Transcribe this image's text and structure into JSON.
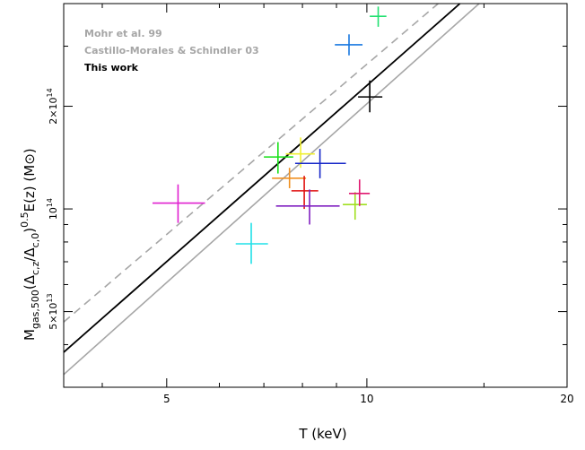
{
  "chart_data": {
    "type": "scatter",
    "title": "",
    "xlabel": "T (keV)",
    "ylabel_parts": {
      "M": "M",
      "M_sub": "gas,500",
      "paren_open": "(Δ",
      "sub1": "c,z",
      "slash": "/Δ",
      "sub2": "c,0",
      "paren_close": ")",
      "exp": "0.5",
      "tail": "E(z)  (M",
      "sun": "⊙",
      "end": ")"
    },
    "x_scale": "log",
    "y_scale": "log",
    "xlim": [
      3.5,
      20
    ],
    "ylim": [
      30000000000000.0,
      400000000000000.0
    ],
    "x_tick_labels": [
      {
        "value": 5,
        "label": "5"
      },
      {
        "value": 10,
        "label": "10"
      },
      {
        "value": 20,
        "label": "20"
      }
    ],
    "x_minor_ticks": [
      4,
      6,
      7,
      8,
      9,
      15
    ],
    "y_tick_labels": [
      {
        "value": 50000000000000.0,
        "base": "5×10",
        "exp": "13"
      },
      {
        "value": 100000000000000.0,
        "base": "10",
        "exp": "14"
      },
      {
        "value": 200000000000000.0,
        "base": "2×10",
        "exp": "14"
      }
    ],
    "y_minor_ticks": [
      40000000000000.0,
      60000000000000.0,
      70000000000000.0,
      80000000000000.0,
      90000000000000.0,
      300000000000000.0,
      400000000000000.0
    ],
    "legend": {
      "placement": "top-left",
      "entries": [
        {
          "label": "Mohr et al. 99",
          "color": "#a6a6a6"
        },
        {
          "label": "Castillo-Morales & Schindler 03",
          "color": "#a6a6a6"
        },
        {
          "label": "This work",
          "color": "#000000"
        }
      ]
    },
    "lines": [
      {
        "style": "dashed",
        "color": "#a6a6a6",
        "points": [
          [
            3.5,
            46600000000000.0
          ],
          [
            12.8,
            400000000000000.0
          ]
        ]
      },
      {
        "style": "solid",
        "color": "#000000",
        "points": [
          [
            3.5,
            38000000000000.0
          ],
          [
            13.8,
            400000000000000.0
          ]
        ]
      },
      {
        "style": "solid",
        "color": "#a6a6a6",
        "points": [
          [
            3.5,
            32700000000000.0
          ],
          [
            14.75,
            400000000000000.0
          ]
        ]
      }
    ],
    "points": [
      {
        "color": "#e020d0",
        "x": 5.2,
        "y": 104000000000000.0,
        "xerr": [
          4.76,
          5.71
        ],
        "yerr": [
          91000000000000.0,
          118000000000000.0
        ]
      },
      {
        "color": "#20e0e8",
        "x": 6.7,
        "y": 79000000000000.0,
        "xerr": [
          6.35,
          7.1
        ],
        "yerr": [
          69000000000000.0,
          91000000000000.0
        ]
      },
      {
        "color": "#18e018",
        "x": 7.35,
        "y": 142000000000000.0,
        "xerr": [
          7.0,
          7.75
        ],
        "yerr": [
          127000000000000.0,
          157000000000000.0
        ]
      },
      {
        "color": "#f09020",
        "x": 7.65,
        "y": 123000000000000.0,
        "xerr": [
          7.2,
          8.1
        ],
        "yerr": [
          115000000000000.0,
          132000000000000.0
        ]
      },
      {
        "color": "#f0f030",
        "x": 7.95,
        "y": 145000000000000.0,
        "xerr": [
          7.55,
          8.35
        ],
        "yerr": [
          132000000000000.0,
          162000000000000.0
        ]
      },
      {
        "color": "#e01010",
        "x": 8.05,
        "y": 113000000000000.0,
        "xerr": [
          7.7,
          8.45
        ],
        "yerr": [
          100000000000000.0,
          125000000000000.0
        ]
      },
      {
        "color": "#8020c0",
        "x": 8.2,
        "y": 102000000000000.0,
        "xerr": [
          7.3,
          9.1
        ],
        "yerr": [
          90000000000000.0,
          114000000000000.0
        ]
      },
      {
        "color": "#1828c8",
        "x": 8.5,
        "y": 136000000000000.0,
        "xerr": [
          7.8,
          9.3
        ],
        "yerr": [
          123000000000000.0,
          150000000000000.0
        ]
      },
      {
        "color": "#a0e020",
        "x": 9.6,
        "y": 103000000000000.0,
        "xerr": [
          9.2,
          10.0
        ],
        "yerr": [
          93000000000000.0,
          112000000000000.0
        ]
      },
      {
        "color": "#e01870",
        "x": 9.75,
        "y": 111000000000000.0,
        "xerr": [
          9.4,
          10.1
        ],
        "yerr": [
          102000000000000.0,
          122000000000000.0
        ]
      },
      {
        "color": "#1878e0",
        "x": 9.4,
        "y": 303000000000000.0,
        "xerr": [
          8.95,
          9.85
        ],
        "yerr": [
          282000000000000.0,
          325000000000000.0
        ]
      },
      {
        "color": "#000000",
        "x": 10.1,
        "y": 213000000000000.0,
        "xerr": [
          9.7,
          10.55
        ],
        "yerr": [
          192000000000000.0,
          238000000000000.0
        ]
      },
      {
        "color": "#20e070",
        "x": 10.4,
        "y": 367000000000000.0,
        "xerr": [
          10.1,
          10.7
        ],
        "yerr": [
          342000000000000.0,
          392000000000000.0
        ]
      }
    ]
  }
}
